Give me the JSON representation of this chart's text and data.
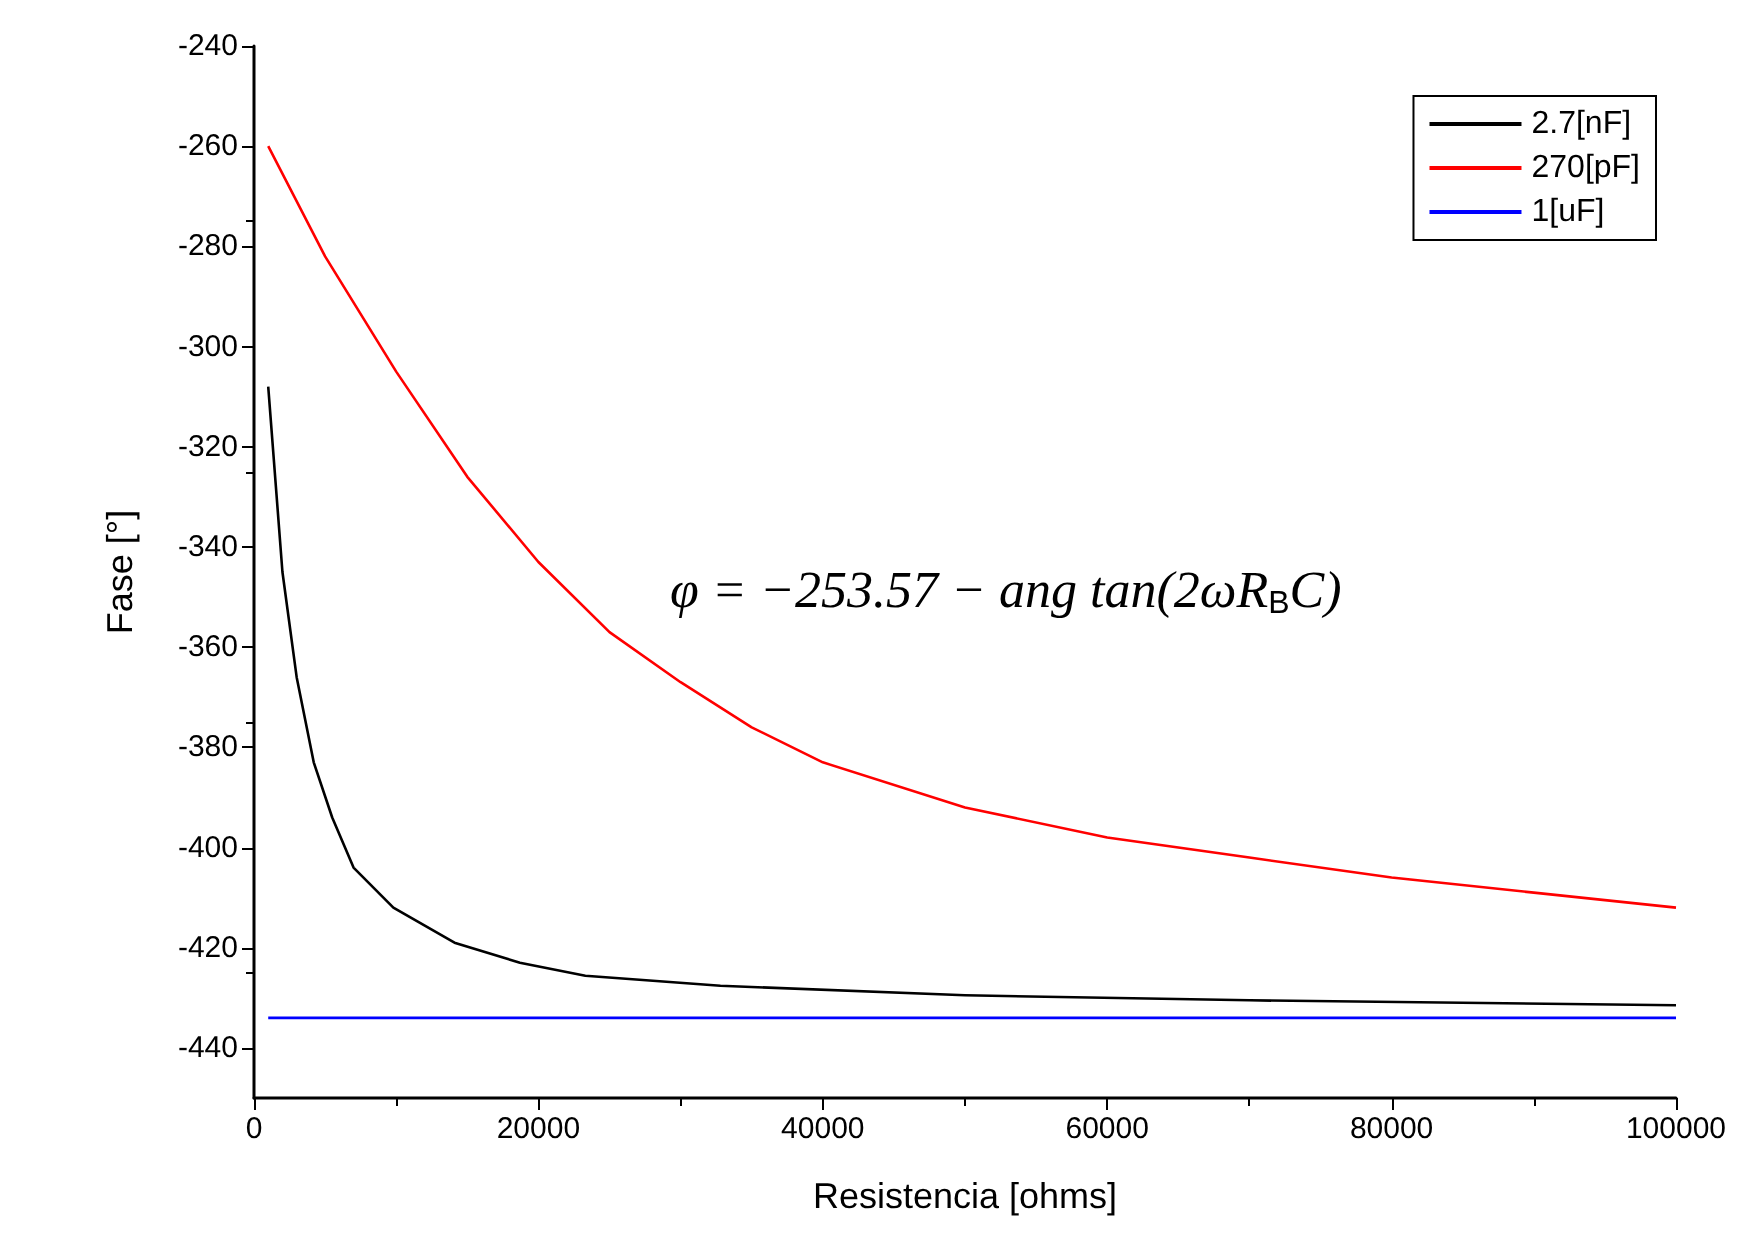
{
  "chart_data": {
    "type": "line",
    "xlabel": "Resistencia [ohms]",
    "ylabel": "Fase [°]",
    "xlim": [
      0,
      100000
    ],
    "xticks": [
      0,
      20000,
      40000,
      60000,
      80000,
      100000
    ],
    "ylim": [
      -450,
      -240
    ],
    "yticks": [
      -440,
      -420,
      -400,
      -380,
      -360,
      -340,
      -320,
      -300,
      -280,
      -260,
      -240
    ],
    "grid": false,
    "legend": "top right",
    "marker": "none",
    "line_style": "solid",
    "annotations": [
      "φ = −253.57 − ang tan(2ωR$_{B}$C)"
    ],
    "series": [
      {
        "name": "2.7[nF]",
        "color": "#000000",
        "x": [
          1000,
          2000,
          3000,
          4200,
          5500,
          7000,
          9800,
          14100,
          18700,
          23300,
          32800,
          50000,
          70000,
          100000
        ],
        "values": [
          -308,
          -345,
          -366,
          -383,
          -394,
          -404,
          -412,
          -419,
          -423,
          -425.6,
          -427.6,
          -429.5,
          -430.5,
          -431.5
        ]
      },
      {
        "name": "270[pF]",
        "color": "#ff0000",
        "x": [
          1000,
          5000,
          10000,
          15000,
          20000,
          25000,
          30000,
          35000,
          40000,
          50000,
          60000,
          70000,
          80000,
          90000,
          100000
        ],
        "values": [
          -260,
          -282,
          -305,
          -326,
          -343,
          -357,
          -367,
          -376,
          -383,
          -392,
          -398,
          -402,
          -406,
          -409,
          -412
        ]
      },
      {
        "name": "1[uF]",
        "color": "#0000ff",
        "x": [
          1000,
          100000
        ],
        "values": [
          -434,
          -434
        ]
      }
    ]
  }
}
